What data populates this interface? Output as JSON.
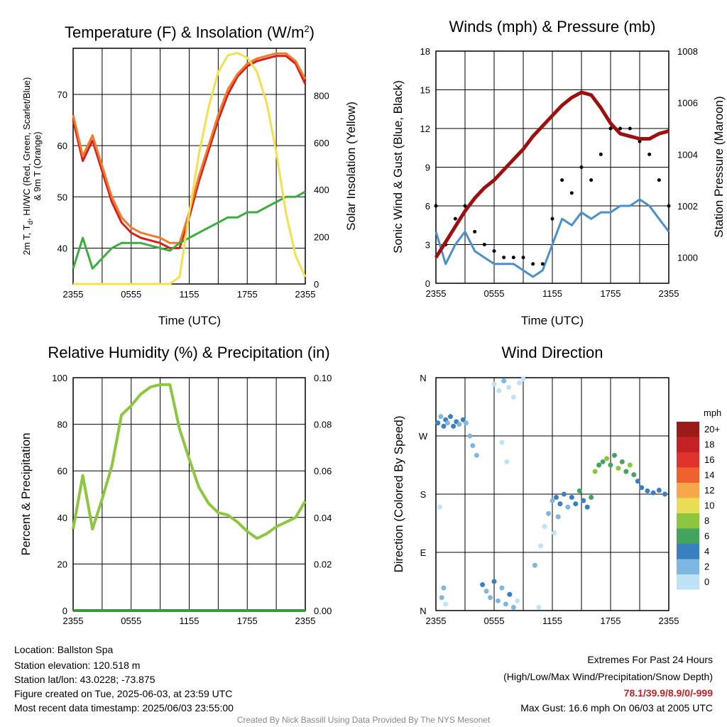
{
  "chart_data": [
    {
      "type": "line",
      "title": "Temperature (F) & Insolation (W/m",
      "title_sup": "2",
      "title_end": ")",
      "xlabel": "Time (UTC)",
      "ylabel_line1": "2m T, T",
      "ylabel_sub": "d",
      "ylabel_line1_end": ", HI/WC (Red, Green, Scarlet/Blue)",
      "ylabel_line2": "& 9m T (Orange)",
      "y2label": "Solar Insolation (Yellow)",
      "x_ticks": [
        "2355",
        "0555",
        "1155",
        "1755",
        "2355"
      ],
      "ylim": [
        33,
        79
      ],
      "y_ticks": [
        40,
        50,
        60,
        70
      ],
      "y2lim": [
        0,
        1000
      ],
      "y2_ticks": [
        0,
        200,
        400,
        600,
        800
      ],
      "x_hours": [
        0,
        1,
        2,
        3,
        4,
        5,
        6,
        7,
        8,
        9,
        10,
        11,
        12,
        13,
        14,
        15,
        16,
        17,
        18,
        19,
        20,
        21,
        22,
        23,
        24
      ],
      "series": [
        {
          "color": "#d62020",
          "values": [
            65,
            57,
            61,
            55,
            49,
            45,
            43,
            42,
            41.5,
            41,
            40,
            40,
            46,
            53,
            59,
            65,
            70,
            73.5,
            75.5,
            76.5,
            77,
            77.5,
            77.5,
            76,
            72
          ]
        },
        {
          "color": "#f07b2a",
          "values": [
            66,
            58,
            62,
            56,
            50,
            46,
            44,
            43,
            42.5,
            42,
            41,
            41,
            47,
            54,
            60,
            66,
            71,
            74,
            76,
            77,
            77.5,
            78,
            78,
            76.5,
            73
          ]
        },
        {
          "color": "#3cae3f",
          "values": [
            36,
            42,
            36,
            38,
            40,
            41,
            41,
            41,
            40.5,
            40,
            39.5,
            41,
            42,
            43,
            44,
            45,
            46,
            46,
            47,
            47,
            48,
            49,
            50,
            50,
            51
          ]
        },
        {
          "color": "#f4e04d",
          "axis": "y2",
          "values": [
            0,
            0,
            0,
            0,
            0,
            0,
            0,
            0,
            0,
            0,
            0,
            30,
            300,
            550,
            750,
            900,
            970,
            980,
            960,
            900,
            770,
            560,
            300,
            120,
            30
          ]
        }
      ]
    },
    {
      "type": "line",
      "title": "Winds (mph) & Pressure (mb)",
      "xlabel": "Time (UTC)",
      "ylabel": "Sonic Wind & Gust (Blue, Black)",
      "y2label": "Station Pressure (Maroon)",
      "x_ticks": [
        "2355",
        "0555",
        "1155",
        "1755",
        "2355"
      ],
      "ylim": [
        0,
        18
      ],
      "y_ticks": [
        0,
        3,
        6,
        9,
        12,
        15,
        18
      ],
      "y2lim": [
        999,
        1008
      ],
      "y2_ticks": [
        1000,
        1002,
        1004,
        1006,
        1008
      ],
      "x_hours": [
        0,
        1,
        2,
        3,
        4,
        5,
        6,
        7,
        8,
        9,
        10,
        11,
        12,
        13,
        14,
        15,
        16,
        17,
        18,
        19,
        20,
        21,
        22,
        23,
        24
      ],
      "series": [
        {
          "color": "#4a90d0",
          "values": [
            4,
            1.5,
            3,
            4,
            2.5,
            2,
            1.5,
            1.5,
            1.5,
            1,
            0.5,
            1,
            3,
            5,
            4.5,
            5.5,
            5,
            5.5,
            5.5,
            6,
            6,
            6.5,
            6,
            5,
            4
          ]
        },
        {
          "color": "#000000",
          "values": [
            6,
            3,
            5,
            6,
            4,
            3,
            2.5,
            2,
            2,
            2,
            1.5,
            1.5,
            5,
            8,
            7,
            9,
            8,
            10,
            12,
            12,
            12,
            11,
            10,
            8,
            6
          ]
        },
        {
          "color": "#9e1010",
          "axis": "y2",
          "values": [
            1000,
            1000.6,
            1001.2,
            1001.8,
            1002.3,
            1002.7,
            1003.0,
            1003.4,
            1003.8,
            1004.2,
            1004.7,
            1005.1,
            1005.5,
            1005.9,
            1006.2,
            1006.4,
            1006.3,
            1005.8,
            1005.2,
            1004.8,
            1004.7,
            1004.6,
            1004.6,
            1004.8,
            1004.9
          ]
        }
      ]
    },
    {
      "type": "line",
      "title": "Relative Humidity (%) & Precipitation (in)",
      "xlabel": "",
      "ylabel": "Percent & Precipitation",
      "x_ticks": [
        "2355",
        "0555",
        "1155",
        "1755",
        "2355"
      ],
      "ylim": [
        0,
        100
      ],
      "y_ticks": [
        0,
        20,
        40,
        60,
        80,
        100
      ],
      "y2lim": [
        0,
        0.1
      ],
      "y2_ticks": [
        "0.00",
        "0.02",
        "0.04",
        "0.06",
        "0.08",
        "0.10"
      ],
      "x_hours": [
        0,
        1,
        2,
        3,
        4,
        5,
        6,
        7,
        8,
        9,
        10,
        11,
        12,
        13,
        14,
        15,
        16,
        17,
        18,
        19,
        20,
        21,
        22,
        23,
        24
      ],
      "series": [
        {
          "color": "#8dc63f",
          "values": [
            35,
            58,
            35,
            48,
            62,
            84,
            88,
            93,
            96,
            97,
            97,
            78,
            65,
            53,
            46,
            42,
            41,
            38,
            34,
            31,
            33,
            36,
            38,
            40,
            47
          ]
        },
        {
          "color": "#3a9a3a",
          "values": [
            0,
            0,
            0,
            0,
            0,
            0,
            0,
            0,
            0,
            0,
            0,
            0,
            0,
            0,
            0,
            0,
            0,
            0,
            0,
            0,
            0,
            0,
            0,
            0,
            0
          ]
        }
      ]
    },
    {
      "type": "scatter",
      "title": "Wind Direction",
      "xlabel": "",
      "ylabel": "Direction (Colored By Speed)",
      "x_ticks": [
        "2355",
        "0555",
        "1155",
        "1755",
        "2355"
      ],
      "y_ticks": [
        "N",
        "E",
        "S",
        "W",
        "N"
      ],
      "ylim": [
        0,
        360
      ],
      "points": [
        {
          "x": 0.2,
          "dir": 290,
          "speed": 4
        },
        {
          "x": 0.5,
          "dir": 300,
          "speed": 2
        },
        {
          "x": 0.8,
          "dir": 285,
          "speed": 4
        },
        {
          "x": 1.0,
          "dir": 295,
          "speed": 4
        },
        {
          "x": 1.2,
          "dir": 290,
          "speed": 2
        },
        {
          "x": 1.5,
          "dir": 300,
          "speed": 4
        },
        {
          "x": 1.8,
          "dir": 285,
          "speed": 4
        },
        {
          "x": 2.1,
          "dir": 292,
          "speed": 4
        },
        {
          "x": 2.4,
          "dir": 288,
          "speed": 2
        },
        {
          "x": 2.8,
          "dir": 295,
          "speed": 4
        },
        {
          "x": 3.1,
          "dir": 290,
          "speed": 2
        },
        {
          "x": 3.5,
          "dir": 270,
          "speed": 2
        },
        {
          "x": 3.8,
          "dir": 255,
          "speed": 2
        },
        {
          "x": 4.2,
          "dir": 240,
          "speed": 2
        },
        {
          "x": 0.4,
          "dir": 160,
          "speed": 0
        },
        {
          "x": 0.6,
          "dir": 20,
          "speed": 2
        },
        {
          "x": 0.8,
          "dir": 35,
          "speed": 2
        },
        {
          "x": 1.0,
          "dir": 10,
          "speed": 0
        },
        {
          "x": 4.8,
          "dir": 40,
          "speed": 4
        },
        {
          "x": 5.2,
          "dir": 30,
          "speed": 2
        },
        {
          "x": 5.6,
          "dir": 20,
          "speed": 2
        },
        {
          "x": 6.0,
          "dir": 45,
          "speed": 4
        },
        {
          "x": 6.4,
          "dir": 15,
          "speed": 2
        },
        {
          "x": 6.8,
          "dir": 35,
          "speed": 2
        },
        {
          "x": 7.2,
          "dir": 10,
          "speed": 2
        },
        {
          "x": 7.6,
          "dir": 25,
          "speed": 4
        },
        {
          "x": 8.0,
          "dir": 5,
          "speed": 2
        },
        {
          "x": 8.4,
          "dir": 15,
          "speed": 0
        },
        {
          "x": 6.0,
          "dir": 350,
          "speed": 0
        },
        {
          "x": 6.5,
          "dir": 340,
          "speed": 0
        },
        {
          "x": 7.0,
          "dir": 355,
          "speed": 2
        },
        {
          "x": 7.5,
          "dir": 345,
          "speed": 0
        },
        {
          "x": 8.0,
          "dir": 330,
          "speed": 0
        },
        {
          "x": 8.6,
          "dir": 352,
          "speed": 0
        },
        {
          "x": 9.0,
          "dir": 358,
          "speed": 0
        },
        {
          "x": 6.8,
          "dir": 260,
          "speed": 0
        },
        {
          "x": 7.3,
          "dir": 230,
          "speed": 0
        },
        {
          "x": 10.6,
          "dir": 5,
          "speed": 0
        },
        {
          "x": 10.2,
          "dir": 70,
          "speed": 2
        },
        {
          "x": 10.8,
          "dir": 100,
          "speed": 0
        },
        {
          "x": 11.2,
          "dir": 130,
          "speed": 0
        },
        {
          "x": 11.6,
          "dir": 150,
          "speed": 2
        },
        {
          "x": 12.0,
          "dir": 170,
          "speed": 2
        },
        {
          "x": 12.4,
          "dir": 175,
          "speed": 4
        },
        {
          "x": 12.8,
          "dir": 165,
          "speed": 4
        },
        {
          "x": 13.2,
          "dir": 180,
          "speed": 4
        },
        {
          "x": 13.6,
          "dir": 160,
          "speed": 2
        },
        {
          "x": 14.0,
          "dir": 175,
          "speed": 4
        },
        {
          "x": 14.4,
          "dir": 165,
          "speed": 4
        },
        {
          "x": 14.8,
          "dir": 185,
          "speed": 6
        },
        {
          "x": 15.2,
          "dir": 170,
          "speed": 4
        },
        {
          "x": 15.6,
          "dir": 160,
          "speed": 4
        },
        {
          "x": 16.0,
          "dir": 175,
          "speed": 6
        },
        {
          "x": 16.4,
          "dir": 215,
          "speed": 8
        },
        {
          "x": 16.8,
          "dir": 225,
          "speed": 6
        },
        {
          "x": 17.2,
          "dir": 230,
          "speed": 6
        },
        {
          "x": 17.6,
          "dir": 235,
          "speed": 8
        },
        {
          "x": 18.0,
          "dir": 225,
          "speed": 6
        },
        {
          "x": 18.4,
          "dir": 240,
          "speed": 6
        },
        {
          "x": 18.8,
          "dir": 220,
          "speed": 8
        },
        {
          "x": 19.2,
          "dir": 230,
          "speed": 6
        },
        {
          "x": 19.6,
          "dir": 215,
          "speed": 6
        },
        {
          "x": 20.0,
          "dir": 225,
          "speed": 8
        },
        {
          "x": 20.4,
          "dir": 210,
          "speed": 6
        },
        {
          "x": 20.8,
          "dir": 200,
          "speed": 4
        },
        {
          "x": 21.2,
          "dir": 190,
          "speed": 4
        },
        {
          "x": 21.8,
          "dir": 185,
          "speed": 4
        },
        {
          "x": 22.4,
          "dir": 182,
          "speed": 4
        },
        {
          "x": 23.0,
          "dir": 186,
          "speed": 4
        },
        {
          "x": 23.6,
          "dir": 180,
          "speed": 4
        },
        {
          "x": 12.2,
          "dir": 120,
          "speed": 0
        },
        {
          "x": 12.6,
          "dir": 145,
          "speed": 2
        }
      ],
      "legend": {
        "unit": "mph",
        "labels": [
          "20+",
          "18",
          "16",
          "14",
          "12",
          "10",
          "8",
          "6",
          "4",
          "2",
          "0"
        ],
        "colors": [
          "#9b1b1b",
          "#c42026",
          "#e0332d",
          "#f0602c",
          "#f8a64a",
          "#e8dd55",
          "#8cc63f",
          "#45a360",
          "#3a7fc0",
          "#7eb7e2",
          "#bfe3f6"
        ]
      }
    }
  ],
  "footer": {
    "location": "Location: Ballston Spa",
    "elevation": "Station elevation: 120.518 m",
    "latlon": "Station lat/lon: 43.0228; -73.875",
    "created": "Figure created on Tue, 2025-06-03, at 23:59 UTC",
    "recent": "Most recent data timestamp: 2025/06/03 23:55:00",
    "extremes_title": "Extremes For Past 24 Hours",
    "extremes_desc": "(High/Low/Max Wind/Precipitation/Snow Depth)",
    "extremes_values": "78.1/39.9/8.9/0/-999",
    "max_gust": "Max Gust: 16.6 mph On 06/03 at 2005 UTC",
    "credit": "Created By Nick Bassill Using Data Provided By The NYS Mesonet"
  }
}
